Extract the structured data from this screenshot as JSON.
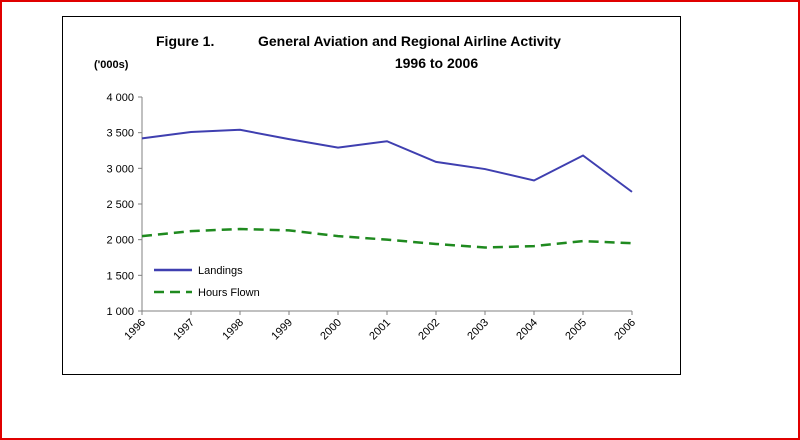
{
  "chart_data": {
    "type": "line",
    "figure_label": "Figure 1.",
    "title": "General Aviation and Regional Airline Activity",
    "subtitle": "1996 to 2006",
    "ylabel": "('000s)",
    "xlabel": "",
    "ylim": [
      1000,
      4000
    ],
    "yticks": [
      "1 000",
      "1 500",
      "2 000",
      "2 500",
      "3 000",
      "3 500",
      "4 000"
    ],
    "categories": [
      "1996",
      "1997",
      "1998",
      "1999",
      "2000",
      "2001",
      "2002",
      "2003",
      "2004",
      "2005",
      "2006"
    ],
    "grid": false,
    "legend_position": "lower-left",
    "series": [
      {
        "name": "Landings",
        "color": "#3f3fb0",
        "style": "solid",
        "values": [
          3420,
          3510,
          3540,
          3410,
          3290,
          3380,
          3090,
          2990,
          2830,
          3180,
          2670
        ]
      },
      {
        "name": "Hours Flown",
        "color": "#1f8a1f",
        "style": "dashed",
        "values": [
          2050,
          2120,
          2150,
          2130,
          2050,
          2000,
          1940,
          1890,
          1910,
          1980,
          1950
        ]
      }
    ]
  }
}
